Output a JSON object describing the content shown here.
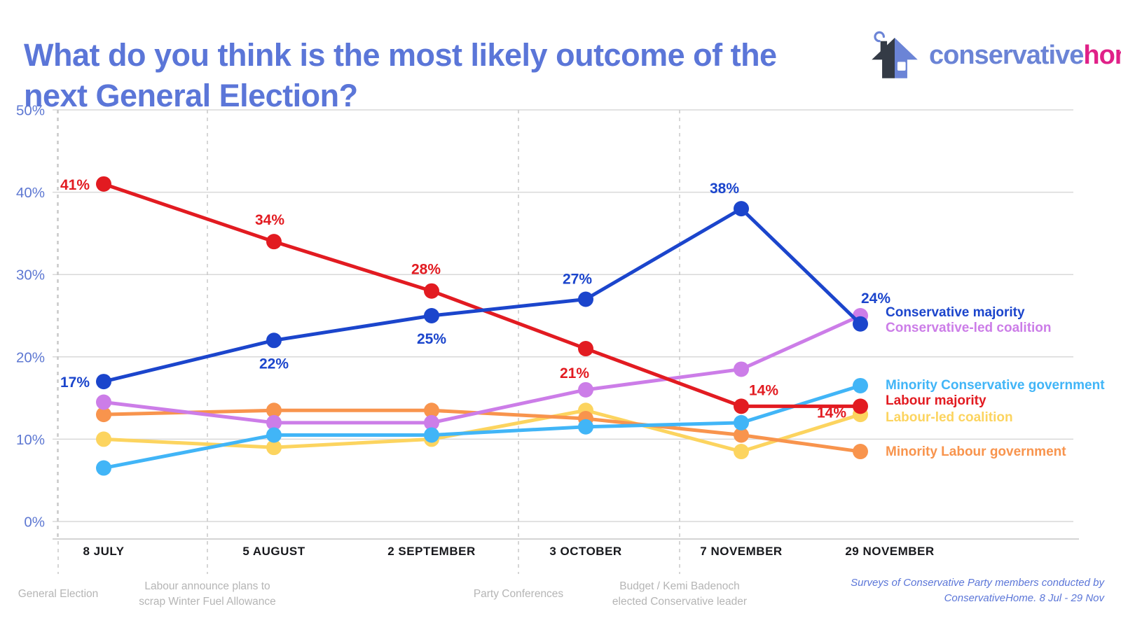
{
  "title": "What do you think is the most likely outcome of the next General Election?",
  "logo": {
    "word1": "conservative",
    "word2": "home"
  },
  "source_note": {
    "line1": "Surveys of Conservative Party members conducted by",
    "line2": "ConservativeHome. 8 Jul - 29 Nov"
  },
  "chart_data": {
    "type": "line",
    "title": "What do you think is the most likely outcome of the next General Election?",
    "categories": [
      "8 JULY",
      "5 AUGUST",
      "2 SEPTEMBER",
      "3 OCTOBER",
      "7 NOVEMBER",
      "29 NOVEMBER"
    ],
    "y_ticks": [
      "50%",
      "40%",
      "30%",
      "20%",
      "10%",
      "0%"
    ],
    "ylim": [
      0,
      50
    ],
    "grid": true,
    "legend_position": "right",
    "series": [
      {
        "name": "Conservative majority",
        "color": "#1b45cc",
        "values": [
          17,
          22,
          25,
          27,
          38,
          24
        ],
        "point_labels": [
          "17%",
          "22%",
          "25%",
          "27%",
          "38%",
          "24%"
        ]
      },
      {
        "name": "Labour majority",
        "color": "#e21b21",
        "values": [
          41,
          34,
          28,
          21,
          14,
          14
        ],
        "point_labels": [
          "41%",
          "34%",
          "28%",
          "21%",
          "14%",
          "14%"
        ]
      },
      {
        "name": "Conservative-led coalition",
        "color": "#cc7de8",
        "values": [
          14.5,
          12,
          12,
          16,
          18.5,
          25
        ],
        "point_labels": null
      },
      {
        "name": "Minority Conservative government",
        "color": "#41b5f7",
        "values": [
          6.5,
          10.5,
          10.5,
          11.5,
          12,
          16.5
        ],
        "point_labels": null
      },
      {
        "name": "Labour-led coalition",
        "color": "#fcd45f",
        "values": [
          10,
          9,
          10,
          13.5,
          8.5,
          13
        ],
        "point_labels": null
      },
      {
        "name": "Minority Labour government",
        "color": "#f8944d",
        "values": [
          13,
          13.5,
          13.5,
          12.5,
          10.5,
          8.5
        ],
        "point_labels": null
      }
    ],
    "events": [
      {
        "lines": [
          "General Election"
        ]
      },
      {
        "lines": [
          "Labour announce plans to",
          "scrap Winter Fuel Allowance"
        ]
      },
      {
        "lines": [
          "Party Conferences"
        ]
      },
      {
        "lines": [
          "Budget / Kemi Badenoch",
          "elected Conservative leader"
        ]
      }
    ]
  }
}
